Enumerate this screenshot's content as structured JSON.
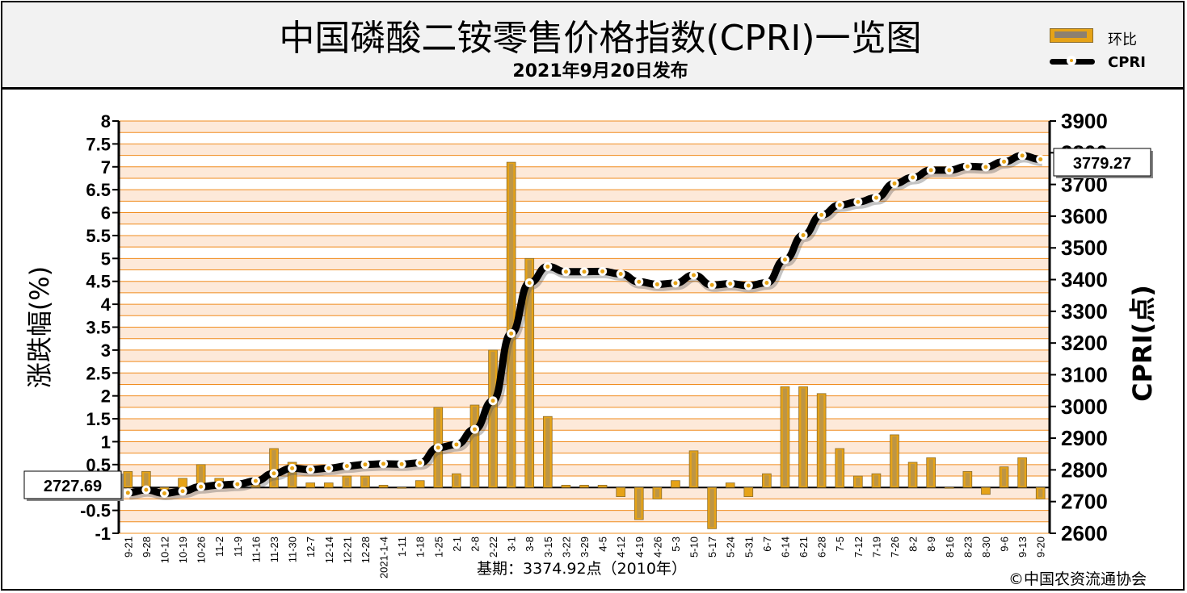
{
  "title": "中国磷酸二铵零售价格指数(CPRI)一览图",
  "subtitle": "2021年9月20日发布",
  "legend": {
    "bar_label": "环比",
    "line_label": "CPRI"
  },
  "base_note": "基期：3374.92点（2010年）",
  "copyright": "©中国农资流通协会",
  "colors": {
    "bar": "#e6a317",
    "bar_dark": "#8c6d2c",
    "grid": "#f08c1e",
    "bg_band": "#fde9d9",
    "line": "#000000",
    "dot": "#ffffff",
    "dot_center": "#e6a317"
  },
  "chart_data": {
    "type": "bar+line",
    "xlabels": [
      "9-21",
      "9-28",
      "10-12",
      "10-19",
      "10-26",
      "11-2",
      "11-9",
      "11-16",
      "11-23",
      "11-30",
      "12-7",
      "12-14",
      "12-21",
      "12-28",
      "2021-1-4",
      "1-11",
      "1-18",
      "1-25",
      "2-1",
      "2-8",
      "2-22",
      "3-1",
      "3-8",
      "3-15",
      "3-22",
      "3-29",
      "4-5",
      "4-12",
      "4-19",
      "4-26",
      "5-3",
      "5-10",
      "5-17",
      "5-24",
      "5-31",
      "6-7",
      "6-14",
      "6-21",
      "6-28",
      "7-5",
      "7-12",
      "7-19",
      "7-26",
      "8-2",
      "8-9",
      "8-16",
      "8-23",
      "8-30",
      "9-6",
      "9-13",
      "9-20"
    ],
    "series": [
      {
        "name": "环比",
        "axis": "left",
        "values": [
          0.35,
          0.35,
          -0.1,
          0.2,
          0.5,
          0.2,
          0.1,
          0.1,
          0.85,
          0.55,
          0.1,
          0.1,
          0.25,
          0.25,
          0.05,
          0.0,
          0.15,
          1.75,
          0.3,
          1.8,
          3.0,
          7.1,
          5.0,
          1.55,
          0.05,
          0.05,
          0.05,
          -0.2,
          -0.7,
          -0.25,
          0.15,
          0.8,
          -0.9,
          0.1,
          -0.2,
          0.3,
          2.2,
          2.2,
          2.05,
          0.85,
          0.25,
          0.3,
          1.15,
          0.55,
          0.65,
          0.0,
          0.35,
          -0.15,
          0.45,
          0.65,
          -0.25
        ]
      },
      {
        "name": "CPRI",
        "axis": "right",
        "values": [
          2727.69,
          2737,
          2726,
          2733,
          2747,
          2752,
          2755,
          2765,
          2789,
          2805,
          2801,
          2805,
          2812,
          2817,
          2819,
          2818,
          2822,
          2870,
          2880,
          2928,
          3018,
          3230,
          3390,
          3441,
          3425,
          3425,
          3426,
          3418,
          3393,
          3385,
          3389,
          3414,
          3383,
          3387,
          3381,
          3390,
          3463,
          3540,
          3604,
          3635,
          3645,
          3658,
          3703,
          3722,
          3745,
          3745,
          3757,
          3755,
          3772,
          3791,
          3779.27
        ]
      }
    ],
    "left_axis": {
      "label": "涨跌幅(%)",
      "min": -1,
      "max": 8,
      "ticks": [
        "-1",
        "-0.5",
        "0",
        "0.5",
        "1",
        "1.5",
        "2",
        "2.5",
        "3",
        "3.5",
        "4",
        "4.5",
        "5",
        "5.5",
        "6",
        "6.5",
        "7",
        "7.5",
        "8"
      ]
    },
    "right_axis": {
      "label": "CPRI(点)",
      "min": 2600,
      "max": 3900,
      "ticks": [
        "2600",
        "2700",
        "2800",
        "2900",
        "3000",
        "3100",
        "3200",
        "3300",
        "3400",
        "3500",
        "3600",
        "3700",
        "3800",
        "3900"
      ]
    },
    "annotations": {
      "start_value": "2727.69",
      "end_value": "3779.27"
    }
  }
}
